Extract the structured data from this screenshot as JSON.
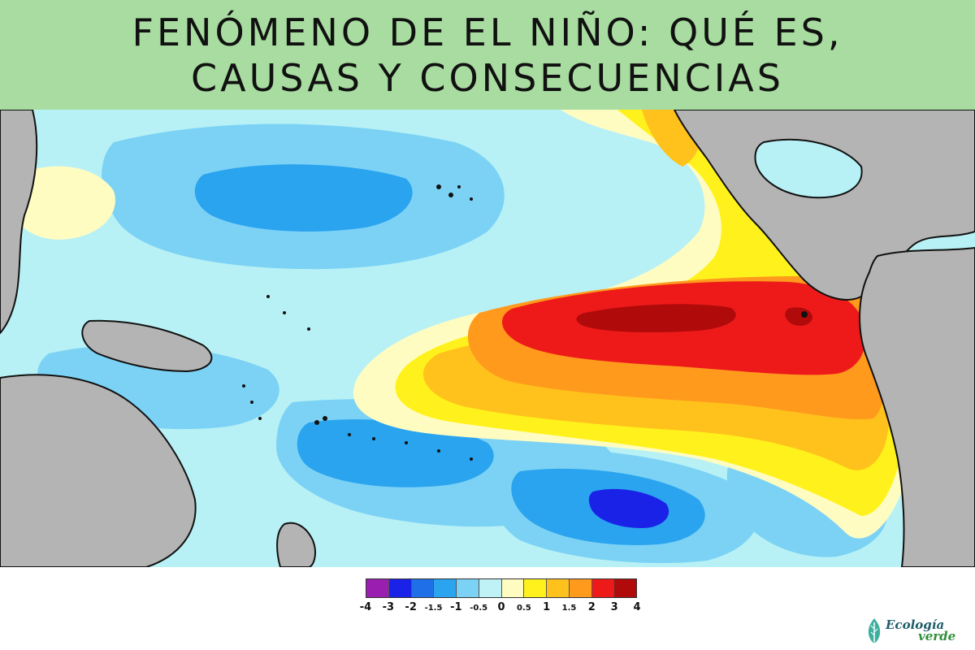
{
  "header": {
    "title_line1": "FENÓMENO DE EL NIÑO: QUÉ ES,",
    "title_line2": "CAUSAS Y CONSECUENCIAS"
  },
  "map": {
    "description_semantic": "sea-surface-temperature-anomaly-pacific",
    "land_color": "#b4b4b4",
    "ocean_neutral_color": "#b7f1f5"
  },
  "legend": {
    "swatches": [
      {
        "color": "#9a1fb0"
      },
      {
        "color": "#1a22e8"
      },
      {
        "color": "#1f70e8"
      },
      {
        "color": "#2aa4ee"
      },
      {
        "color": "#7cd2f5"
      },
      {
        "color": "#bff2f7"
      },
      {
        "color": "#fffcc2"
      },
      {
        "color": "#fff21c"
      },
      {
        "color": "#ffc21c"
      },
      {
        "color": "#ff9a1c"
      },
      {
        "color": "#ee1a1a"
      },
      {
        "color": "#b00a0a"
      }
    ],
    "ticks": [
      {
        "label": "-4",
        "small": false
      },
      {
        "label": "-3",
        "small": false
      },
      {
        "label": "-2",
        "small": false
      },
      {
        "label": "-1.5",
        "small": true
      },
      {
        "label": "-1",
        "small": false
      },
      {
        "label": "-0.5",
        "small": true
      },
      {
        "label": "0",
        "small": false
      },
      {
        "label": "0.5",
        "small": true
      },
      {
        "label": "1",
        "small": false
      },
      {
        "label": "1.5",
        "small": true
      },
      {
        "label": "2",
        "small": false
      },
      {
        "label": "3",
        "small": false
      },
      {
        "label": "4",
        "small": false
      }
    ]
  },
  "brand": {
    "word1": "Ecología",
    "word2": "verde",
    "leaf_color": "#3fb0a0"
  }
}
